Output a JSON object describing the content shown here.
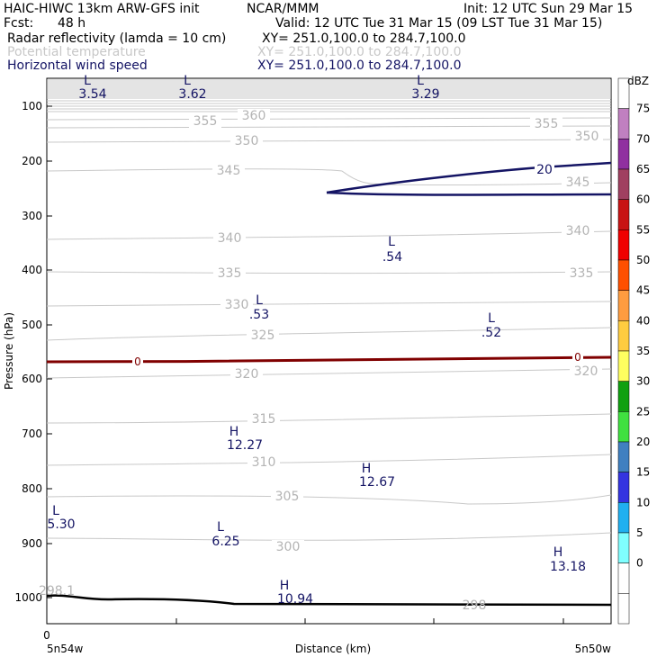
{
  "header": {
    "model": "HAIC-HIWC 13km ARW-GFS init",
    "org": "NCAR/MMM",
    "init": "Init: 12 UTC Sun 29 Mar 15",
    "fcst_label": "Fcst:",
    "fcst_value": "48 h",
    "valid": "Valid: 12 UTC Tue 31 Mar 15 (09 LST Tue 31 Mar 15)",
    "fields": [
      {
        "name": "Radar reflectivity (lamda = 10 cm)",
        "xy": "XY= 251.0,100.0 to 284.7,100.0",
        "color": "#000000"
      },
      {
        "name": "Potential temperature",
        "xy": "XY= 251.0,100.0 to 284.7,100.0",
        "color": "#c8c8c8"
      },
      {
        "name": "Horizontal wind speed",
        "xy": "XY= 251.0,100.0 to 284.7,100.0",
        "color": "#141464"
      }
    ]
  },
  "chart_data": {
    "type": "line",
    "ylabel": "Pressure (hPa)",
    "xlabel": "Distance (km)",
    "x_start_label": "5n54w",
    "x_end_label": "5n50w",
    "x_tick_zero": "0",
    "y_scale": "log",
    "ylim": [
      1050,
      50
    ],
    "yticks": [
      100,
      200,
      300,
      400,
      500,
      600,
      700,
      800,
      900,
      1000
    ],
    "colorbar": {
      "unit": "dBZ",
      "levels": [
        "75",
        "70",
        "65",
        "60",
        "55",
        "50",
        "45",
        "40",
        "35",
        "30",
        "25",
        "20",
        "15",
        "10",
        "5",
        "0"
      ],
      "colors": [
        "#ffffff",
        "#c080c0",
        "#9030a0",
        "#a04060",
        "#c81414",
        "#f00000",
        "#ff5000",
        "#ff9c40",
        "#ffcc40",
        "#ffff60",
        "#10a010",
        "#40e040",
        "#4080c0",
        "#3434e0",
        "#20b0f0",
        "#80ffff",
        "#ffffff",
        "#ffffff"
      ]
    },
    "theta_labels": [
      "360",
      "355",
      "355",
      "350",
      "350",
      "345",
      "345",
      "340",
      "340",
      "335",
      "335",
      "330",
      "325",
      "320",
      "320",
      "315",
      "310",
      "305",
      "300",
      "298",
      "298.1"
    ],
    "wind_contour_label": "20",
    "freezing_label": "0",
    "extrema": [
      {
        "type": "L",
        "value": "3.54"
      },
      {
        "type": "L",
        "value": "3.62"
      },
      {
        "type": "L",
        "value": "3.29"
      },
      {
        "type": "L",
        "value": ".54"
      },
      {
        "type": "L",
        "value": ".53"
      },
      {
        "type": "L",
        "value": ".52"
      },
      {
        "type": "H",
        "value": "12.27"
      },
      {
        "type": "H",
        "value": "12.67"
      },
      {
        "type": "L",
        "value": "5.30"
      },
      {
        "type": "L",
        "value": "6.25"
      },
      {
        "type": "H",
        "value": "13.18"
      },
      {
        "type": "H",
        "value": "10.94"
      }
    ]
  }
}
